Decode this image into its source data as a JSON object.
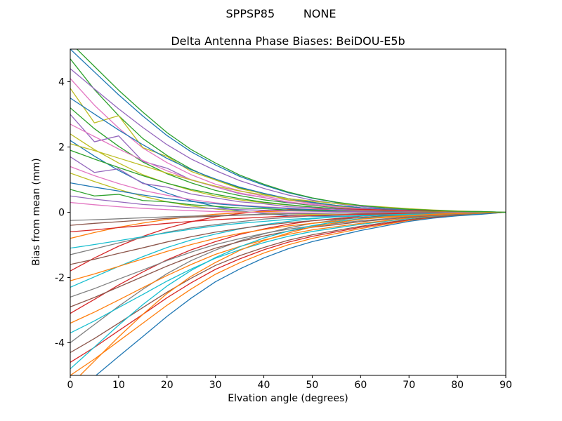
{
  "chart_data": {
    "type": "line",
    "suptitle": "SPPSP85        NONE",
    "title": "Delta Antenna Phase Biases: BeiDOU-E5b",
    "xlabel": "Elvation angle (degrees)",
    "ylabel": "Bias from mean (mm)",
    "xlim": [
      0,
      90
    ],
    "ylim": [
      -5,
      5
    ],
    "xticks": [
      0,
      10,
      20,
      30,
      40,
      50,
      60,
      70,
      80,
      90
    ],
    "yticks": [
      -4,
      -2,
      0,
      2,
      4
    ],
    "grid": false,
    "legend": "none",
    "palette": [
      "#1f77b4",
      "#ff7f0e",
      "#2ca02c",
      "#d62728",
      "#9467bd",
      "#8c564b",
      "#e377c2",
      "#7f7f7f",
      "#bcbd22",
      "#17becf"
    ],
    "x": [
      0,
      5,
      10,
      15,
      20,
      25,
      30,
      35,
      40,
      45,
      50,
      55,
      60,
      65,
      70,
      75,
      80,
      85,
      90
    ],
    "series": [
      {
        "values": [
          5.0,
          4.3,
          3.6,
          2.95,
          2.35,
          1.85,
          1.45,
          1.1,
          0.83,
          0.6,
          0.43,
          0.3,
          0.2,
          0.14,
          0.09,
          0.06,
          0.03,
          0.02,
          0
        ]
      },
      {
        "values": [
          -5.0,
          -4.5,
          -3.95,
          -3.4,
          -2.85,
          -2.35,
          -1.9,
          -1.55,
          -1.25,
          -1.0,
          -0.8,
          -0.65,
          -0.5,
          -0.38,
          -0.25,
          -0.17,
          -0.1,
          -0.05,
          0
        ]
      },
      {
        "values": [
          4.7,
          3.76,
          2.96,
          2.26,
          1.74,
          1.32,
          0.99,
          0.75,
          0.56,
          0.42,
          0.31,
          0.21,
          0.14,
          0.09,
          0.06,
          0.04,
          0.02,
          0.01,
          0
        ]
      },
      {
        "values": [
          -4.6,
          -4.14,
          -3.63,
          -3.13,
          -2.62,
          -2.16,
          -1.75,
          -1.43,
          -1.15,
          -0.92,
          -0.74,
          -0.6,
          -0.46,
          -0.35,
          -0.23,
          -0.15,
          -0.09,
          -0.05,
          0
        ]
      },
      {
        "values": [
          4.4,
          3.78,
          3.17,
          2.6,
          2.07,
          1.63,
          1.28,
          0.97,
          0.73,
          0.53,
          0.37,
          0.26,
          0.18,
          0.12,
          0.08,
          0.05,
          0.03,
          0.01,
          0
        ]
      },
      {
        "values": [
          -4.3,
          -3.87,
          -3.4,
          -2.92,
          -2.45,
          -2.02,
          -1.63,
          -1.33,
          -1.08,
          -0.86,
          -0.69,
          -0.56,
          -0.43,
          -0.32,
          -0.22,
          -0.14,
          -0.09,
          -0.04,
          0
        ]
      },
      {
        "values": [
          4.1,
          3.28,
          2.58,
          1.97,
          1.52,
          1.15,
          0.86,
          0.66,
          0.49,
          0.37,
          0.27,
          0.18,
          0.12,
          0.08,
          0.05,
          0.03,
          0.02,
          0.01,
          0
        ]
      },
      {
        "values": [
          -4.0,
          -3.44,
          -2.88,
          -2.36,
          -1.88,
          -1.48,
          -1.16,
          -0.88,
          -0.66,
          -0.48,
          -0.34,
          -0.24,
          -0.16,
          -0.11,
          -0.07,
          -0.04,
          -0.02,
          -0.01,
          0
        ]
      },
      {
        "values": [
          3.8,
          2.74,
          2.96,
          1.98,
          1.71,
          1.25,
          0.99,
          0.72,
          0.57,
          0.38,
          0.3,
          0.19,
          0.13,
          0.08,
          0.06,
          0.04,
          0.02,
          0.01,
          0
        ]
      },
      {
        "values": [
          -3.7,
          -3.33,
          -2.92,
          -2.52,
          -2.11,
          -1.74,
          -1.41,
          -1.15,
          -0.93,
          -0.74,
          -0.59,
          -0.48,
          -0.37,
          -0.28,
          -0.19,
          -0.12,
          -0.07,
          -0.04,
          0
        ]
      },
      {
        "values": [
          3.5,
          3.01,
          2.52,
          2.07,
          1.65,
          1.3,
          1.02,
          0.77,
          0.58,
          0.42,
          0.3,
          0.21,
          0.14,
          0.09,
          0.06,
          0.04,
          0.02,
          0.01,
          0
        ]
      },
      {
        "values": [
          -3.4,
          -3.06,
          -2.69,
          -2.31,
          -1.94,
          -1.6,
          -1.29,
          -1.05,
          -0.85,
          -0.68,
          -0.54,
          -0.44,
          -0.34,
          -0.26,
          -0.17,
          -0.11,
          -0.07,
          -0.03,
          0
        ]
      },
      {
        "values": [
          3.2,
          2.56,
          2.02,
          1.54,
          1.18,
          0.9,
          0.67,
          0.51,
          0.38,
          0.29,
          0.21,
          0.14,
          0.1,
          0.06,
          0.04,
          0.03,
          0.02,
          0.01,
          0
        ]
      },
      {
        "values": [
          -3.1,
          -2.67,
          -2.23,
          -1.83,
          -1.46,
          -1.15,
          -0.9,
          -0.68,
          -0.51,
          -0.37,
          -0.26,
          -0.19,
          -0.12,
          -0.08,
          -0.06,
          -0.03,
          -0.02,
          -0.01,
          0
        ]
      },
      {
        "values": [
          3.0,
          2.16,
          2.34,
          1.56,
          1.35,
          0.99,
          0.78,
          0.57,
          0.45,
          0.3,
          0.24,
          0.15,
          0.11,
          0.07,
          0.05,
          0.03,
          0.02,
          0.01,
          0
        ]
      },
      {
        "values": [
          -2.9,
          -2.61,
          -2.29,
          -1.97,
          -1.65,
          -1.36,
          -1.1,
          -0.9,
          -0.73,
          -0.58,
          -0.46,
          -0.38,
          -0.29,
          -0.22,
          -0.15,
          -0.1,
          -0.06,
          -0.03,
          0
        ]
      },
      {
        "values": [
          2.7,
          2.32,
          1.94,
          1.59,
          1.27,
          1.0,
          0.78,
          0.59,
          0.45,
          0.32,
          0.23,
          0.16,
          0.11,
          0.07,
          0.05,
          0.03,
          0.02,
          0.01,
          0
        ]
      },
      {
        "values": [
          -2.6,
          -2.34,
          -2.05,
          -1.77,
          -1.48,
          -1.22,
          -0.99,
          -0.81,
          -0.65,
          -0.52,
          -0.42,
          -0.34,
          -0.26,
          -0.2,
          -0.13,
          -0.09,
          -0.05,
          -0.03,
          0
        ]
      },
      {
        "values": [
          2.4,
          1.92,
          1.51,
          1.15,
          0.89,
          0.67,
          0.5,
          0.38,
          0.29,
          0.22,
          0.16,
          0.11,
          0.07,
          0.05,
          0.03,
          0.02,
          0.01,
          0,
          0
        ]
      },
      {
        "values": [
          -2.3,
          -1.98,
          -1.66,
          -1.36,
          -1.08,
          -0.85,
          -0.67,
          -0.51,
          -0.38,
          -0.28,
          -0.2,
          -0.14,
          -0.09,
          -0.06,
          -0.04,
          -0.03,
          -0.01,
          -0.01,
          0
        ]
      },
      {
        "values": [
          2.2,
          1.72,
          1.28,
          0.9,
          0.59,
          0.35,
          0.18,
          0.04,
          -0.04,
          -0.1,
          -0.12,
          -0.12,
          -0.11,
          -0.09,
          -0.07,
          -0.04,
          -0.03,
          -0.01,
          0
        ]
      },
      {
        "values": [
          -2.1,
          -1.89,
          -1.66,
          -1.43,
          -1.2,
          -0.99,
          -0.8,
          -0.65,
          -0.53,
          -0.42,
          -0.34,
          -0.27,
          -0.21,
          -0.16,
          -0.11,
          -0.07,
          -0.04,
          -0.02,
          0
        ]
      },
      {
        "values": [
          1.9,
          1.63,
          1.37,
          1.12,
          0.89,
          0.7,
          0.55,
          0.42,
          0.31,
          0.23,
          0.16,
          0.11,
          0.08,
          0.05,
          0.03,
          0.02,
          0.01,
          0.01,
          0
        ]
      },
      {
        "values": [
          -1.8,
          -1.4,
          -1.04,
          -0.74,
          -0.49,
          -0.29,
          -0.14,
          -0.04,
          0.04,
          0.08,
          0.1,
          0.1,
          0.09,
          0.07,
          0.05,
          0.04,
          0.02,
          0.01,
          0
        ]
      },
      {
        "values": [
          1.7,
          1.22,
          1.33,
          0.88,
          0.77,
          0.56,
          0.44,
          0.32,
          0.26,
          0.17,
          0.14,
          0.09,
          0.06,
          0.04,
          0.03,
          0.02,
          0.01,
          0,
          0
        ]
      },
      {
        "values": [
          -1.6,
          -1.44,
          -1.26,
          -1.09,
          -0.91,
          -0.75,
          -0.61,
          -0.5,
          -0.4,
          -0.32,
          -0.26,
          -0.21,
          -0.16,
          -0.12,
          -0.08,
          -0.05,
          -0.03,
          -0.02,
          0
        ]
      },
      {
        "values": [
          1.4,
          1.12,
          0.88,
          0.67,
          0.52,
          0.39,
          0.29,
          0.22,
          0.17,
          0.13,
          0.09,
          0.06,
          0.04,
          0.03,
          0.02,
          0.01,
          0.01,
          0,
          0
        ]
      },
      {
        "values": [
          -1.3,
          -1.12,
          -0.94,
          -0.77,
          -0.61,
          -0.48,
          -0.38,
          -0.29,
          -0.21,
          -0.16,
          -0.11,
          -0.08,
          -0.05,
          -0.04,
          -0.02,
          -0.01,
          -0.01,
          0,
          0
        ]
      },
      {
        "values": [
          1.2,
          0.94,
          0.7,
          0.49,
          0.32,
          0.19,
          0.1,
          0.02,
          -0.02,
          -0.05,
          -0.07,
          -0.07,
          -0.06,
          -0.05,
          -0.04,
          -0.02,
          -0.01,
          -0.01,
          0
        ]
      },
      {
        "values": [
          -1.1,
          -0.99,
          -0.87,
          -0.75,
          -0.63,
          -0.52,
          -0.42,
          -0.34,
          -0.28,
          -0.22,
          -0.18,
          -0.14,
          -0.11,
          -0.08,
          -0.06,
          -0.04,
          -0.02,
          -0.01,
          0
        ]
      },
      {
        "values": [
          0.9,
          0.77,
          0.65,
          0.53,
          0.42,
          0.33,
          0.26,
          0.2,
          0.15,
          0.11,
          0.08,
          0.05,
          0.04,
          0.02,
          0.02,
          0.01,
          0.01,
          0,
          0
        ]
      },
      {
        "values": [
          -0.8,
          -0.62,
          -0.46,
          -0.33,
          -0.22,
          -0.13,
          -0.06,
          -0.02,
          0.02,
          0.04,
          0.04,
          0.04,
          0.04,
          0.03,
          0.02,
          0.02,
          0.01,
          0,
          0
        ]
      },
      {
        "values": [
          0.7,
          0.5,
          0.55,
          0.36,
          0.32,
          0.23,
          0.18,
          0.13,
          0.11,
          0.07,
          0.06,
          0.04,
          0.02,
          0.02,
          0.01,
          0.01,
          0,
          0,
          0
        ]
      },
      {
        "values": [
          -0.6,
          -0.54,
          -0.47,
          -0.41,
          -0.34,
          -0.28,
          -0.23,
          -0.19,
          -0.15,
          -0.12,
          -0.1,
          -0.08,
          -0.06,
          -0.05,
          -0.03,
          -0.02,
          -0.01,
          -0.01,
          0
        ]
      },
      {
        "values": [
          0.5,
          0.4,
          0.32,
          0.24,
          0.19,
          0.14,
          0.11,
          0.08,
          0.06,
          0.05,
          0.03,
          0.02,
          0.02,
          0.01,
          0.01,
          0,
          0,
          0,
          0
        ]
      },
      {
        "values": [
          -0.4,
          -0.34,
          -0.29,
          -0.24,
          -0.19,
          -0.15,
          -0.12,
          -0.09,
          -0.07,
          -0.05,
          -0.03,
          -0.02,
          -0.02,
          -0.01,
          -0.01,
          0,
          0,
          0,
          0
        ]
      },
      {
        "values": [
          0.3,
          0.23,
          0.17,
          0.12,
          0.08,
          0.05,
          0.02,
          0.01,
          -0.01,
          -0.01,
          -0.02,
          -0.02,
          -0.02,
          -0.01,
          -0.01,
          -0.01,
          0,
          0,
          0
        ]
      },
      {
        "values": [
          -0.25,
          -0.23,
          -0.2,
          -0.17,
          -0.14,
          -0.12,
          -0.1,
          -0.08,
          -0.06,
          -0.05,
          -0.04,
          -0.03,
          -0.03,
          -0.02,
          -0.01,
          -0.01,
          -0.01,
          0,
          0
        ]
      },
      {
        "values": [
          2.1,
          1.89,
          1.66,
          1.43,
          1.2,
          0.99,
          0.8,
          0.65,
          0.53,
          0.42,
          0.34,
          0.27,
          0.21,
          0.16,
          0.11,
          0.07,
          0.04,
          0.02,
          0
        ]
      },
      {
        "values": [
          -4.8,
          -4.13,
          -3.46,
          -2.83,
          -2.26,
          -1.78,
          -1.39,
          -1.06,
          -0.79,
          -0.58,
          -0.41,
          -0.29,
          -0.19,
          -0.13,
          -0.09,
          -0.05,
          -0.03,
          -0.01,
          0
        ]
      },
      {
        "values": [
          -5.6,
          -5.04,
          -4.42,
          -3.81,
          -3.19,
          -2.63,
          -2.13,
          -1.74,
          -1.4,
          -1.12,
          -0.9,
          -0.73,
          -0.56,
          -0.42,
          -0.28,
          -0.18,
          -0.11,
          -0.06,
          0
        ]
      },
      {
        "values": [
          -5.3,
          -4.56,
          -3.82,
          -3.13,
          -2.49,
          -1.96,
          -1.54,
          -1.17,
          -0.87,
          -0.64,
          -0.45,
          -0.32,
          -0.21,
          -0.14,
          -0.1,
          -0.06,
          -0.03,
          -0.02,
          0
        ]
      },
      {
        "values": [
          5.2,
          4.47,
          3.74,
          3.07,
          2.44,
          1.92,
          1.51,
          1.14,
          0.86,
          0.62,
          0.44,
          0.31,
          0.21,
          0.14,
          0.09,
          0.06,
          0.03,
          0.02,
          0
        ]
      }
    ]
  }
}
